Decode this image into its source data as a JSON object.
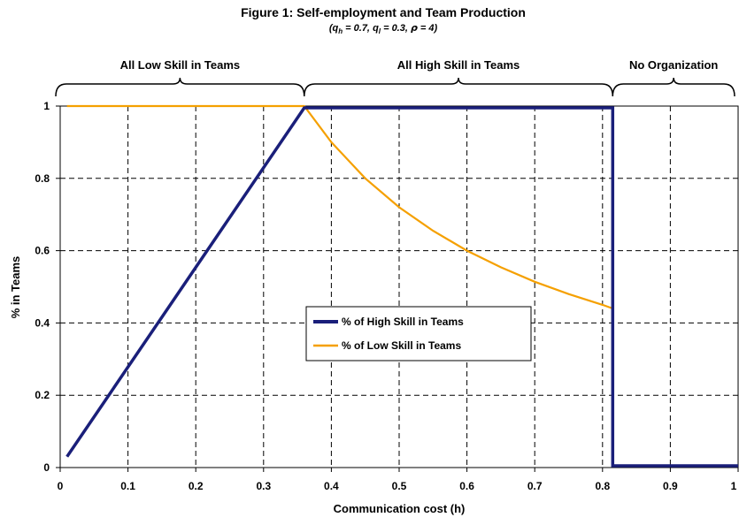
{
  "chart_data": {
    "type": "line",
    "title": "Figure 1: Self-employment and Team Production",
    "subtitle_parts": [
      "(",
      "q",
      "h",
      " = 0.7, ",
      "q",
      "l",
      " = 0.3, ",
      "ρ",
      " = 4",
      ")"
    ],
    "xlabel": "Communication cost (h)",
    "ylabel": "% in Teams",
    "xlim": [
      0,
      1
    ],
    "ylim": [
      0,
      1
    ],
    "xticks": [
      "0",
      "0.1",
      "0.2",
      "0.3",
      "0.4",
      "0.5",
      "0.6",
      "0.7",
      "0.8",
      "0.9",
      "1"
    ],
    "yticks": [
      "0",
      "0.2",
      "0.4",
      "0.6",
      "0.8",
      "1"
    ],
    "grid": true,
    "regions": [
      {
        "label": "All Low Skill in Teams",
        "x_start": 0,
        "x_end": 0.36
      },
      {
        "label": "All High Skill in Teams",
        "x_start": 0.36,
        "x_end": 0.815
      },
      {
        "label": "No Organization",
        "x_start": 0.815,
        "x_end": 1.0
      }
    ],
    "legend": {
      "placement": "center"
    },
    "series": [
      {
        "name": "% of High Skill in Teams",
        "color": "#1a1f7a",
        "x": [
          0.01,
          0.36,
          0.815,
          0.815,
          1.0
        ],
        "y": [
          0.03,
          0.995,
          0.995,
          0.005,
          0.005
        ]
      },
      {
        "name": "% of Low Skill in Teams",
        "color": "#f5a000",
        "x": [
          0.01,
          0.36,
          0.4,
          0.45,
          0.5,
          0.55,
          0.6,
          0.65,
          0.7,
          0.75,
          0.8,
          0.815,
          0.815,
          1.0
        ],
        "y": [
          1.0,
          1.0,
          0.9,
          0.8,
          0.72,
          0.655,
          0.6,
          0.554,
          0.514,
          0.48,
          0.45,
          0.44,
          0.005,
          0.005
        ]
      }
    ]
  }
}
